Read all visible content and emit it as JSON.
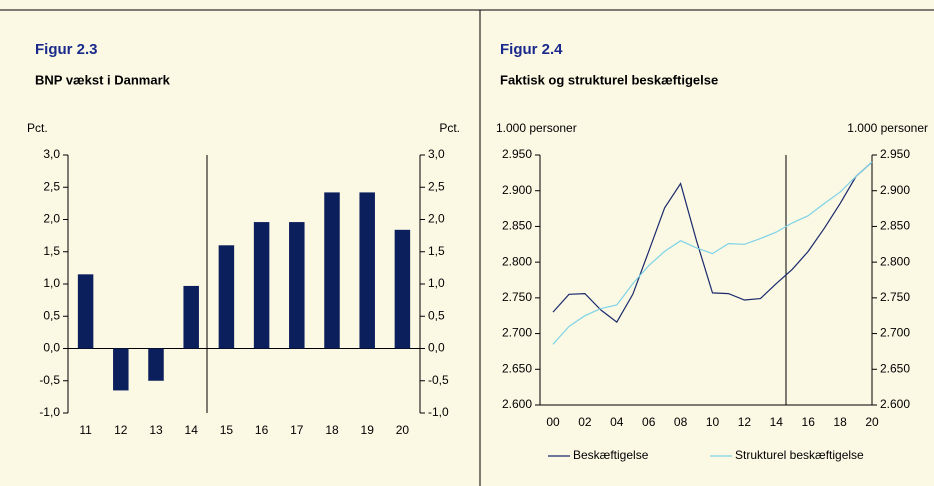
{
  "chart_data": [
    {
      "type": "bar",
      "title": "Figur 2.3",
      "subtitle": "BNP vækst i Danmark",
      "ylabel": "Pct.",
      "y2label": "Pct.",
      "categories": [
        "11",
        "12",
        "13",
        "14",
        "15",
        "16",
        "17",
        "18",
        "19",
        "20"
      ],
      "values": [
        1.15,
        -0.65,
        -0.5,
        0.97,
        1.6,
        1.96,
        1.96,
        2.42,
        2.42,
        1.84
      ],
      "color": "#0b1f5c",
      "ylim": [
        -1.0,
        3.0
      ],
      "yticks": [
        {
          "value": -1.0,
          "label": "-1,0"
        },
        {
          "value": -0.5,
          "label": "-0,5"
        },
        {
          "value": 0,
          "label": "0,0"
        },
        {
          "value": 0.5,
          "label": "0,5"
        },
        {
          "value": 1.0,
          "label": "1,0"
        },
        {
          "value": 1.5,
          "label": "1,5"
        },
        {
          "value": 2.0,
          "label": "2,0"
        },
        {
          "value": 2.5,
          "label": "2,5"
        },
        {
          "value": 3.0,
          "label": "3,0"
        }
      ],
      "y2lim": [
        -1.0,
        3.0
      ],
      "y2ticks": [
        {
          "value": -1.0,
          "label": "-1,0"
        },
        {
          "value": -0.5,
          "label": "-0,5"
        },
        {
          "value": 0,
          "label": "0,0"
        },
        {
          "value": 0.5,
          "label": "0,5"
        },
        {
          "value": 1.0,
          "label": "1,0"
        },
        {
          "value": 1.5,
          "label": "1,5"
        },
        {
          "value": 2.0,
          "label": "2,0"
        },
        {
          "value": 2.5,
          "label": "2,5"
        },
        {
          "value": 3.0,
          "label": "3,0"
        }
      ]
    },
    {
      "type": "line",
      "title": "Figur 2.4",
      "subtitle": "Faktisk og strukturel beskæftigelse",
      "ylabel": "1.000 personer",
      "y2label": "1.000 personer",
      "categories": [
        "00",
        null,
        "02",
        null,
        "04",
        null,
        "06",
        null,
        "08",
        null,
        "10",
        null,
        "12",
        null,
        "14",
        null,
        "16",
        null,
        "18",
        null,
        "20"
      ],
      "series": [
        {
          "name": "Beskæftigelse",
          "color": "#1a2a6c",
          "values": [
            2730,
            2755,
            2756,
            2733,
            2716,
            2755,
            2815,
            2876,
            2910,
            2830,
            2757,
            2756,
            2747,
            2749,
            2770,
            2790,
            2815,
            2847,
            2882,
            2920,
            2940
          ]
        },
        {
          "name": "Strukturel beskæftigelse",
          "color": "#7fd3e8",
          "values": [
            2685,
            2710,
            2725,
            2735,
            2740,
            2770,
            2795,
            2815,
            2830,
            2820,
            2812,
            2826,
            2825,
            2833,
            2842,
            2855,
            2865,
            2882,
            2898,
            2920,
            2940
          ]
        }
      ],
      "ylim": [
        2600,
        2950
      ],
      "yticks": [
        {
          "value": 2600,
          "label": "2.600"
        },
        {
          "value": 2650,
          "label": "2.650"
        },
        {
          "value": 2700,
          "label": "2.700"
        },
        {
          "value": 2750,
          "label": "2.750"
        },
        {
          "value": 2800,
          "label": "2.800"
        },
        {
          "value": 2850,
          "label": "2.850"
        },
        {
          "value": 2900,
          "label": "2.900"
        },
        {
          "value": 2950,
          "label": "2.950"
        }
      ],
      "y2lim": [
        2600,
        2950
      ],
      "y2ticks": [
        {
          "value": 2600,
          "label": "2.600"
        },
        {
          "value": 2650,
          "label": "2.650"
        },
        {
          "value": 2700,
          "label": "2.700"
        },
        {
          "value": 2750,
          "label": "2.750"
        },
        {
          "value": 2800,
          "label": "2.800"
        },
        {
          "value": 2850,
          "label": "2.850"
        },
        {
          "value": 2900,
          "label": "2.900"
        },
        {
          "value": 2950,
          "label": "2.950"
        }
      ],
      "legend": "bottom"
    }
  ]
}
